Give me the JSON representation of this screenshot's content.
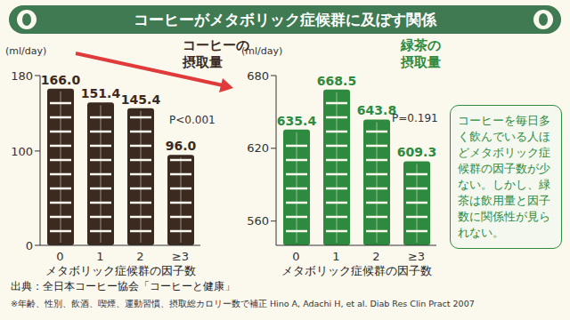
{
  "title": "コーヒーがメタボリック症候群に及ぼす関係",
  "chart_data": [
    {
      "type": "bar",
      "title": "コーヒーの摂取量",
      "y_label": "(ml/day)",
      "x_label": "メタボリック症候群の因子数",
      "categories": [
        "0",
        "1",
        "2",
        "≥3"
      ],
      "values": [
        166.0,
        151.4,
        145.4,
        96.0
      ],
      "value_labels": [
        "166.0",
        "151.4",
        "145.4",
        "96.0"
      ],
      "color": "#3a2a20",
      "ylim": [
        0,
        180
      ],
      "yticks": [
        0,
        100,
        180
      ],
      "grid": false,
      "data_labels": true,
      "annotations": [
        "P<0.001"
      ]
    },
    {
      "type": "bar",
      "title": "緑茶の摂取量",
      "y_label": "(ml/day)",
      "x_label": "メタボリック症候群の因子数",
      "categories": [
        "0",
        "1",
        "2",
        "≥3"
      ],
      "values": [
        635.4,
        668.5,
        643.8,
        609.3
      ],
      "color": "#2e8a3e",
      "ylim": [
        540,
        680
      ],
      "yticks": [
        560,
        620,
        680
      ],
      "grid": false,
      "data_labels": true,
      "annotations": [
        "P=0.191"
      ]
    }
  ],
  "note": "コーヒーを毎日多く飲んでいる人ほどメタボリック症候群の因子数が少ない。しかし、緑茶は飲用量と因子数に関係性が見られない。",
  "source": "出典：全日本コーヒー協会「コーヒーと健康」",
  "footnote": "※年齢、性別、飲酒、喫煙、運動習慣、摂取総カロリー数で補正 Hino A, Adachi H, et al. Diab Res Clin Pract 2007"
}
